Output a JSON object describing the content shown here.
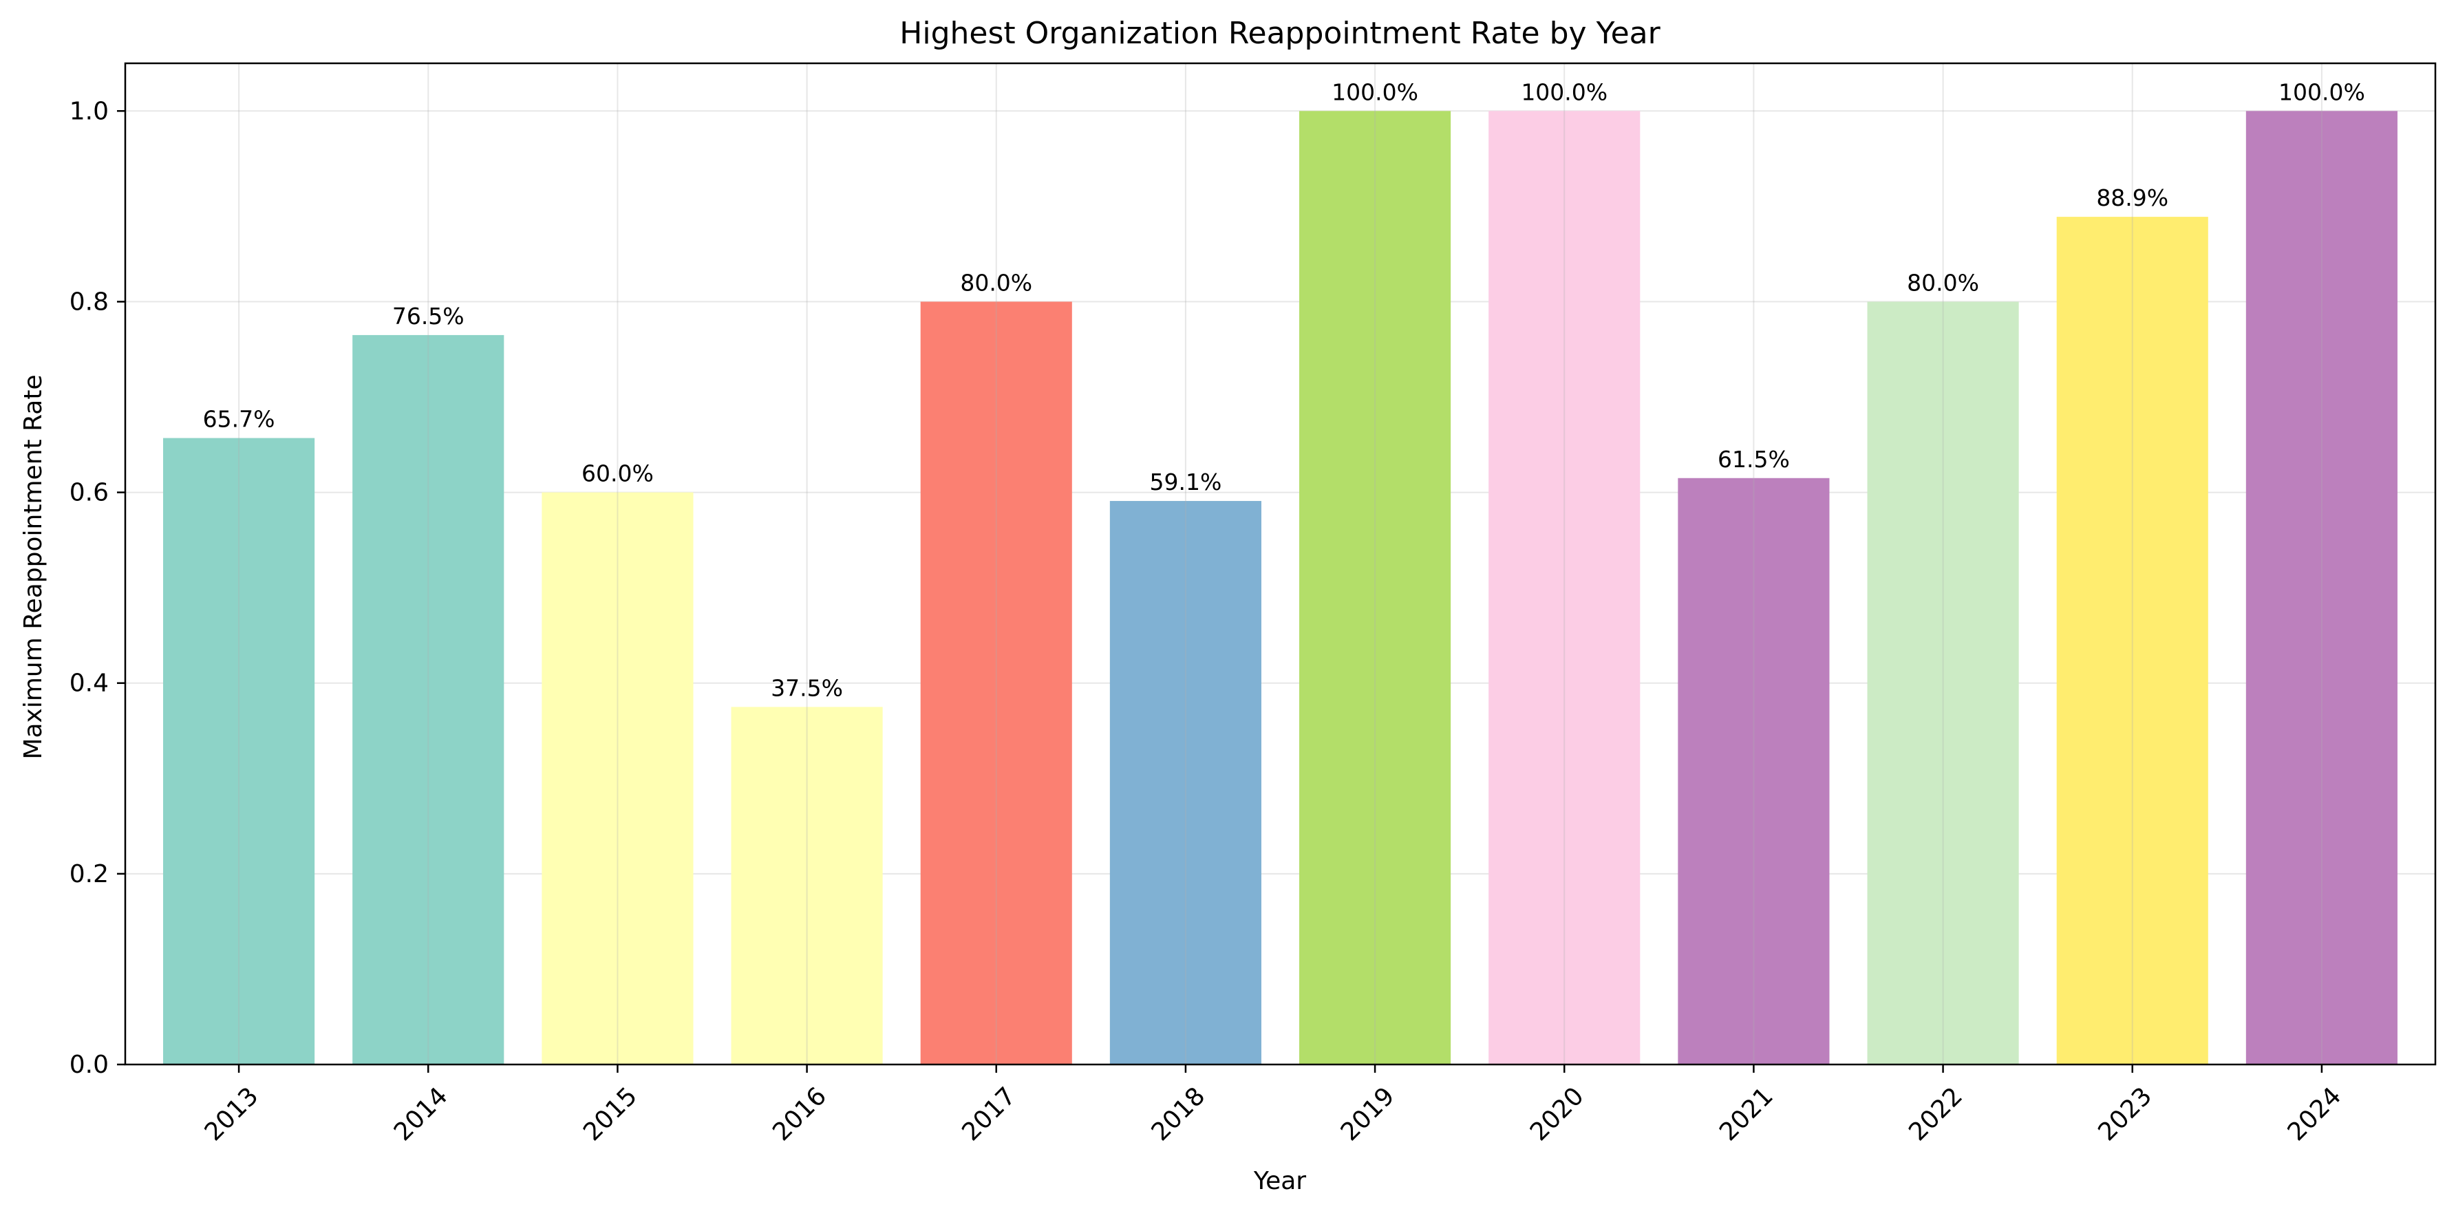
{
  "chart_data": {
    "type": "bar",
    "title": "Highest Organization Reappointment Rate by Year",
    "xlabel": "Year",
    "ylabel": "Maximum Reappointment Rate",
    "categories": [
      "2013",
      "2014",
      "2015",
      "2016",
      "2017",
      "2018",
      "2019",
      "2020",
      "2021",
      "2022",
      "2023",
      "2024"
    ],
    "values": [
      0.657,
      0.765,
      0.6,
      0.375,
      0.8,
      0.591,
      1.0,
      1.0,
      0.615,
      0.8,
      0.889,
      1.0
    ],
    "data_labels": [
      "65.7%",
      "76.5%",
      "60.0%",
      "37.5%",
      "80.0%",
      "59.1%",
      "100.0%",
      "100.0%",
      "61.5%",
      "80.0%",
      "88.9%",
      "100.0%"
    ],
    "colors": [
      "#8dd3c7",
      "#8dd3c7",
      "#ffffb3",
      "#ffffb3",
      "#fb8072",
      "#80b1d3",
      "#b3de69",
      "#fccde5",
      "#bc80bd",
      "#ccebc5",
      "#ffed6f",
      "#bc80bd"
    ],
    "ylim": [
      0,
      1.05
    ],
    "yticks": [
      0.0,
      0.2,
      0.4,
      0.6,
      0.8,
      1.0
    ],
    "ytick_labels": [
      "0.0",
      "0.2",
      "0.4",
      "0.6",
      "0.8",
      "1.0"
    ],
    "grid": true,
    "legend": false
  }
}
